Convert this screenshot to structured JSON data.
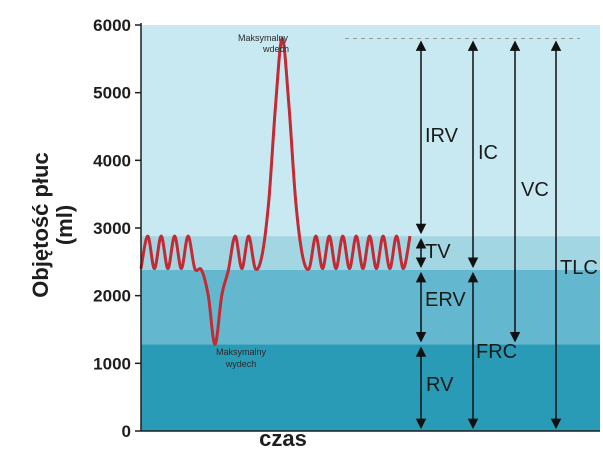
{
  "chart_data": {
    "type": "line",
    "ylabel_line1": "Objętość płuc",
    "ylabel_line2": "(ml)",
    "xlabel": "czas",
    "ylim": [
      0,
      6000
    ],
    "yticks": [
      "0",
      "1000",
      "2000",
      "3000",
      "4000",
      "5000",
      "6000"
    ],
    "levels": {
      "rv_top": 1280,
      "erv_top": 2380,
      "tv_top": 2880,
      "tlc": 5800
    },
    "band_colors": {
      "rv": "#2a9bb7",
      "erv": "#63b8cf",
      "tv": "#a2d6e3",
      "irv": "#c8e9f2"
    },
    "curve_color": "#c42a33",
    "curve": {
      "x": [
        0,
        0.5,
        1,
        1.5,
        2,
        2.5,
        3,
        3.5,
        4,
        4.5,
        5,
        5.5,
        6,
        6.5,
        7,
        7.5,
        8,
        8.5,
        9,
        9.5,
        10,
        10.5,
        11,
        11.5,
        12,
        12.5,
        13,
        13.5,
        14,
        14.5,
        15,
        15.5,
        16,
        16.5,
        17,
        17.5,
        18,
        18.5,
        19,
        19.5,
        20
      ],
      "y": [
        2400,
        2880,
        2400,
        2880,
        2400,
        2880,
        2400,
        2880,
        2400,
        2380,
        2000,
        1280,
        2000,
        2380,
        2880,
        2400,
        2880,
        2400,
        2600,
        3400,
        4800,
        5800,
        4800,
        3400,
        2600,
        2400,
        2880,
        2400,
        2880,
        2400,
        2880,
        2400,
        2880,
        2400,
        2880,
        2400,
        2880,
        2400,
        2880,
        2400,
        2880
      ]
    },
    "annotations": {
      "max_inhale_line1": "Maksymalny",
      "max_inhale_line2": "wdech",
      "max_exhale_line1": "Maksymalny",
      "max_exhale_line2": "wydech"
    },
    "labels": {
      "irv": "IRV",
      "tv": "TV",
      "erv": "ERV",
      "rv": "RV",
      "ic": "IC",
      "frc": "FRC",
      "vc": "VC",
      "tlc": "TLC"
    }
  }
}
